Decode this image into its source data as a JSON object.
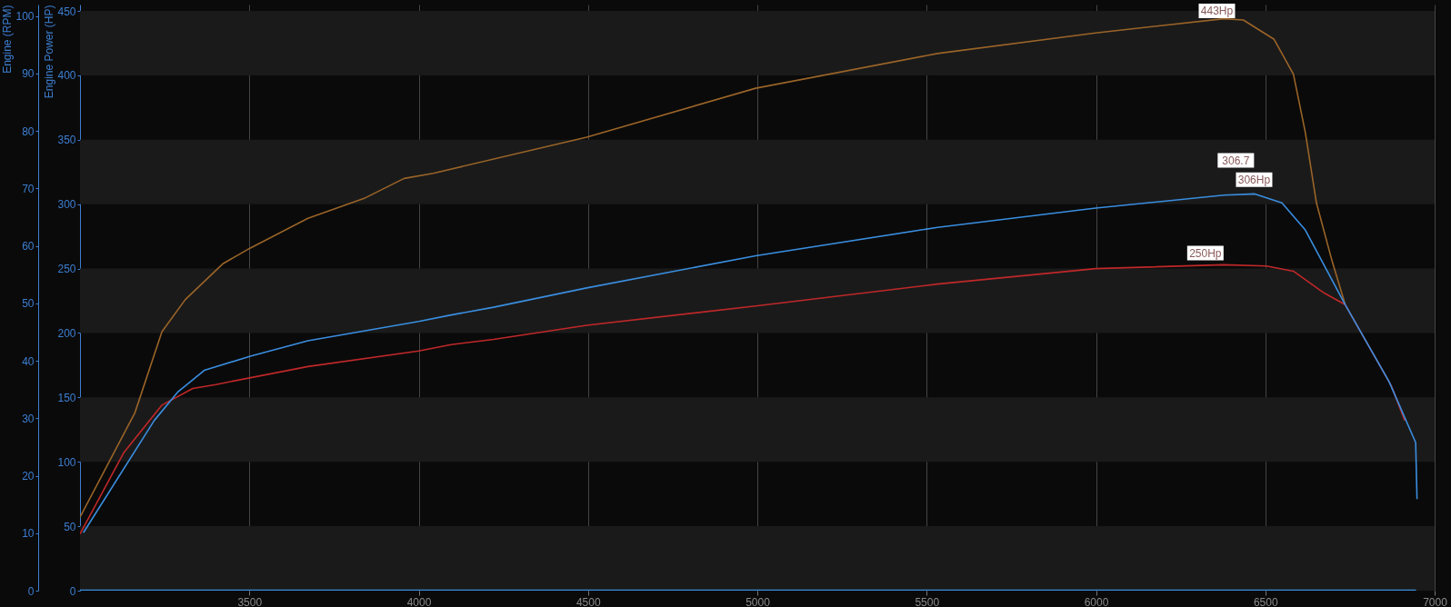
{
  "chart_data": {
    "type": "line",
    "ylabel": "Engine Power (HP)",
    "y2label": "Engine (RPM)",
    "xlim": [
      3000,
      7000
    ],
    "xticks": [
      3500,
      4000,
      4500,
      5000,
      5500,
      6000,
      6500,
      7000
    ],
    "ylim": [
      0,
      455
    ],
    "yticks": [
      0,
      50,
      100,
      150,
      200,
      250,
      300,
      350,
      400,
      450
    ],
    "y2lim": [
      0,
      102
    ],
    "y2ticks": [
      0,
      10,
      20,
      30,
      40,
      50,
      60,
      70,
      80,
      90,
      100
    ],
    "grid": true,
    "line_style": "solid",
    "series": [
      {
        "color": "#9a6428",
        "x": [
          3000,
          3162,
          3242,
          3311,
          3423,
          3503,
          3673,
          3843,
          3957,
          4043,
          4496,
          4995,
          5532,
          5999,
          6378,
          6435,
          6526,
          6583,
          6618,
          6651,
          6697,
          6736
        ],
        "values": [
          57,
          138,
          201,
          226,
          254,
          266,
          289,
          305,
          320,
          324,
          352,
          390,
          417,
          433,
          444,
          443,
          428,
          401,
          356,
          301,
          256,
          222
        ]
      },
      {
        "color": "#c0282a",
        "x": [
          3000,
          3129,
          3242,
          3333,
          3401,
          3673,
          4000,
          4096,
          4221,
          4496,
          4995,
          5532,
          5999,
          6378,
          6503,
          6583,
          6674,
          6736,
          6872,
          6912
        ],
        "values": [
          44,
          107,
          144,
          157,
          160,
          174,
          186,
          191,
          195,
          206,
          221,
          238,
          250,
          253,
          252,
          248,
          231,
          222,
          159,
          132
        ]
      },
      {
        "color": "#3a8ee0",
        "x": [
          3010,
          3219,
          3288,
          3367,
          3503,
          3673,
          4000,
          4096,
          4221,
          4496,
          4995,
          5532,
          5999,
          6378,
          6469,
          6549,
          6618,
          6736,
          6866,
          6944,
          6948
        ],
        "values": [
          45,
          132,
          154,
          171,
          182,
          194,
          209,
          214,
          220,
          235,
          260,
          282,
          297,
          307,
          308,
          301,
          280,
          222,
          162,
          115,
          71
        ]
      },
      {
        "color": "#3a8ee0",
        "axis": "y2",
        "x": [
          3000,
          6945
        ],
        "values": [
          0,
          0
        ]
      }
    ],
    "annotations": [
      {
        "text": "443Hp",
        "x": 6357,
        "y": 450
      },
      {
        "text": "306.7",
        "x": 6413,
        "y": 334
      },
      {
        "text": "306Hp",
        "x": 6467,
        "y": 319
      },
      {
        "text": "250Hp",
        "x": 6323,
        "y": 262
      }
    ]
  }
}
